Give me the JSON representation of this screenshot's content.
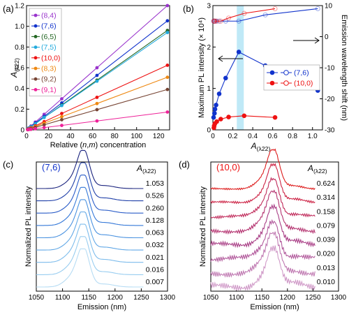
{
  "chart_data": [
    {
      "panel": "(a)",
      "type": "line",
      "xlabel": "Relative (n,m) concentration",
      "ylabel": "A(λ22)",
      "xlim": [
        0,
        130
      ],
      "ylim": [
        0,
        1.2
      ],
      "xticks": [
        0,
        20,
        40,
        60,
        80,
        100,
        120
      ],
      "yticks": [
        0,
        0.2,
        0.4,
        0.6,
        0.8,
        1.0,
        1.2
      ],
      "x": [
        1,
        2,
        4,
        8,
        16,
        32,
        64,
        128
      ],
      "legend_position": "top-left",
      "series": [
        {
          "name": "(8,4)",
          "color": "#9933cc",
          "values": [
            0.009,
            0.018,
            0.037,
            0.075,
            0.15,
            0.3,
            0.6,
            1.2
          ]
        },
        {
          "name": "(7,6)",
          "color": "#1133cc",
          "values": [
            0.008,
            0.016,
            0.033,
            0.066,
            0.13,
            0.26,
            0.526,
            1.053
          ]
        },
        {
          "name": "(6,5)",
          "color": "#226622",
          "values": [
            0.008,
            0.015,
            0.03,
            0.06,
            0.12,
            0.24,
            0.48,
            0.96
          ]
        },
        {
          "name": "(7,5)",
          "color": "#22aadd",
          "values": [
            0.007,
            0.015,
            0.03,
            0.059,
            0.12,
            0.235,
            0.47,
            0.94
          ]
        },
        {
          "name": "(10,0)",
          "color": "#ee1111",
          "values": [
            0.005,
            0.01,
            0.02,
            0.039,
            0.079,
            0.158,
            0.314,
            0.624
          ]
        },
        {
          "name": "(8,3)",
          "color": "#ee8811",
          "values": [
            0.004,
            0.008,
            0.016,
            0.032,
            0.064,
            0.127,
            0.254,
            0.508
          ]
        },
        {
          "name": "(9,2)",
          "color": "#774433",
          "values": [
            0.003,
            0.006,
            0.012,
            0.024,
            0.049,
            0.098,
            0.195,
            0.39
          ]
        },
        {
          "name": "(9,1)",
          "color": "#ee2299",
          "values": [
            0.001,
            0.003,
            0.005,
            0.011,
            0.022,
            0.043,
            0.086,
            0.172
          ]
        }
      ]
    },
    {
      "panel": "(b)",
      "type": "scatter",
      "xlabel": "A(λ22)",
      "ylabel": "Maximum PL intensity (× 10⁴)",
      "y2label": "Emission wavelength shift (nm)",
      "xlim": [
        0,
        1.1
      ],
      "ylim": [
        0,
        3
      ],
      "y2lim": [
        -30,
        10
      ],
      "xticks": [
        0,
        0.2,
        0.4,
        0.6,
        0.8,
        1.0
      ],
      "yticks": [
        0,
        1,
        2,
        3
      ],
      "y2ticks": [
        -30,
        -20,
        -10,
        0,
        10
      ],
      "highlight_band": [
        0.24,
        0.31
      ],
      "legend_position": "center-right",
      "series": [
        {
          "name": "(7,6)",
          "axis": "left",
          "color": "#1133cc",
          "marker": "filled",
          "x": [
            0.007,
            0.016,
            0.021,
            0.032,
            0.063,
            0.128,
            0.26,
            0.526,
            1.053
          ],
          "y": [
            0.3,
            0.4,
            0.5,
            0.6,
            0.87,
            1.25,
            1.88,
            1.55,
            0.95
          ]
        },
        {
          "name": "(10,0)",
          "axis": "left",
          "color": "#ee1111",
          "marker": "filled",
          "x": [
            0.01,
            0.013,
            0.02,
            0.039,
            0.079,
            0.158,
            0.314,
            0.624
          ],
          "y": [
            0.05,
            0.1,
            0.15,
            0.2,
            0.26,
            0.31,
            0.34,
            0.3
          ]
        },
        {
          "name": "(7,6)",
          "axis": "right",
          "color": "#1133cc",
          "marker": "open",
          "x": [
            0.007,
            0.016,
            0.021,
            0.032,
            0.063,
            0.128,
            0.26,
            0.526,
            1.053
          ],
          "y": [
            5.0,
            5.0,
            5.0,
            5.0,
            5.0,
            5.0,
            5.0,
            7.0,
            9.0
          ]
        },
        {
          "name": "(10,0)",
          "axis": "right",
          "color": "#ee1111",
          "marker": "open",
          "x": [
            0.01,
            0.013,
            0.02,
            0.039,
            0.079,
            0.158,
            0.314,
            0.624
          ],
          "y": [
            5.0,
            5.0,
            5.0,
            5.0,
            5.0,
            6.0,
            7.5,
            9.0
          ]
        }
      ]
    },
    {
      "panel": "(c)",
      "type": "line",
      "label": "(7,6)",
      "label_color": "#1133cc",
      "legend_title": "A(λ22)",
      "xlabel": "Emission (nm)",
      "ylabel": "Normalized PL intensity",
      "xlim": [
        1050,
        1300
      ],
      "xticks": [
        1050,
        1100,
        1150,
        1200,
        1250,
        1300
      ],
      "peak_nm": 1140,
      "series": [
        {
          "name": "1.053",
          "color": "#1a237e"
        },
        {
          "name": "0.526",
          "color": "#1f3fa8"
        },
        {
          "name": "0.260",
          "color": "#2a5cc8"
        },
        {
          "name": "0.128",
          "color": "#3478d8"
        },
        {
          "name": "0.063",
          "color": "#4a92e0"
        },
        {
          "name": "0.032",
          "color": "#62a8e6"
        },
        {
          "name": "0.021",
          "color": "#7dbcec"
        },
        {
          "name": "0.016",
          "color": "#98cdf0"
        },
        {
          "name": "0.007",
          "color": "#b6dcf4"
        }
      ]
    },
    {
      "panel": "(d)",
      "type": "line",
      "label": "(10,0)",
      "label_color": "#ee1111",
      "legend_title": "A(λ22)",
      "xlabel": "Emission (nm)",
      "ylabel": "Normalized PL intensity",
      "xlim": [
        1050,
        1300
      ],
      "xticks": [
        1050,
        1100,
        1150,
        1200,
        1250,
        1300
      ],
      "peak_nm": 1173,
      "series": [
        {
          "name": "0.624",
          "color": "#dd1c1c"
        },
        {
          "name": "0.314",
          "color": "#cc2244"
        },
        {
          "name": "0.158",
          "color": "#c02a5a"
        },
        {
          "name": "0.079",
          "color": "#b43370"
        },
        {
          "name": "0.039",
          "color": "#a83d85"
        },
        {
          "name": "0.020",
          "color": "#b25a9c"
        },
        {
          "name": "0.013",
          "color": "#c07ab2"
        },
        {
          "name": "0.010",
          "color": "#d09ac8"
        }
      ]
    }
  ]
}
